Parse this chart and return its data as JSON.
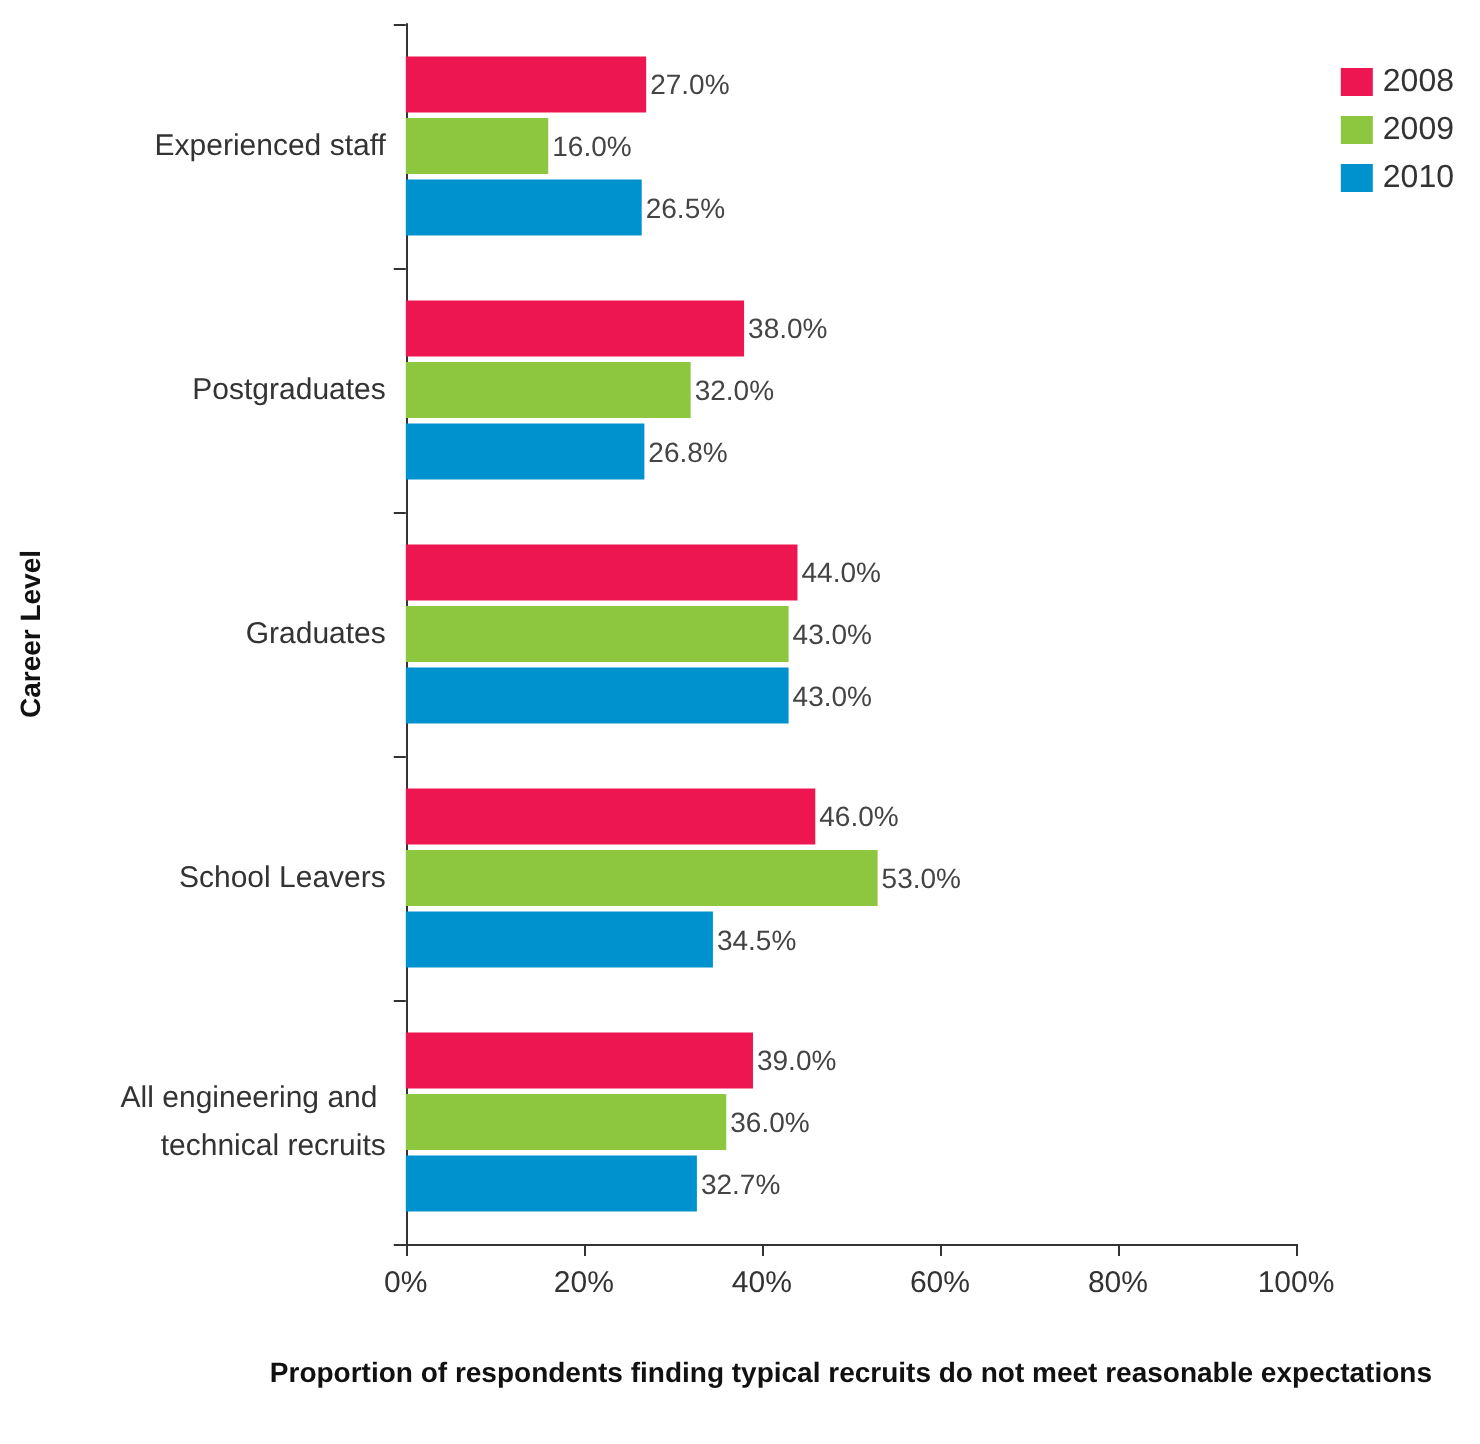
{
  "chart_data": {
    "type": "bar",
    "orientation": "horizontal",
    "ylabel": "Career Level",
    "xlabel": "Proportion of respondents finding typical recruits do not meet reasonable expectations",
    "categories": [
      "Experienced staff",
      "Postgraduates",
      "Graduates",
      "School Leavers",
      "All engineering and technical recruits"
    ],
    "series": [
      {
        "name": "2008",
        "color": "#ed1651",
        "values": [
          27.0,
          38.0,
          44.0,
          46.0,
          39.0
        ],
        "value_labels": [
          "27.0%",
          "38.0%",
          "44.0%",
          "46.0%",
          "39.0%"
        ]
      },
      {
        "name": "2009",
        "color": "#8dc63f",
        "values": [
          16.0,
          32.0,
          43.0,
          53.0,
          36.0
        ],
        "value_labels": [
          "16.0%",
          "32.0%",
          "43.0%",
          "53.0%",
          "36.0%"
        ]
      },
      {
        "name": "2010",
        "color": "#0092cf",
        "values": [
          26.5,
          26.8,
          43.0,
          34.5,
          32.7
        ],
        "value_labels": [
          "26.5%",
          "26.8%",
          "43.0%",
          "34.5%",
          "32.7%"
        ]
      }
    ],
    "xlim": [
      0,
      100
    ],
    "xticks": [
      {
        "value": 0,
        "label": "0%"
      },
      {
        "value": 20,
        "label": "20%"
      },
      {
        "value": 40,
        "label": "40%"
      },
      {
        "value": 60,
        "label": "60%"
      },
      {
        "value": 80,
        "label": "80%"
      },
      {
        "value": 100,
        "label": "100%"
      }
    ],
    "legend": "top right",
    "grid": false
  }
}
